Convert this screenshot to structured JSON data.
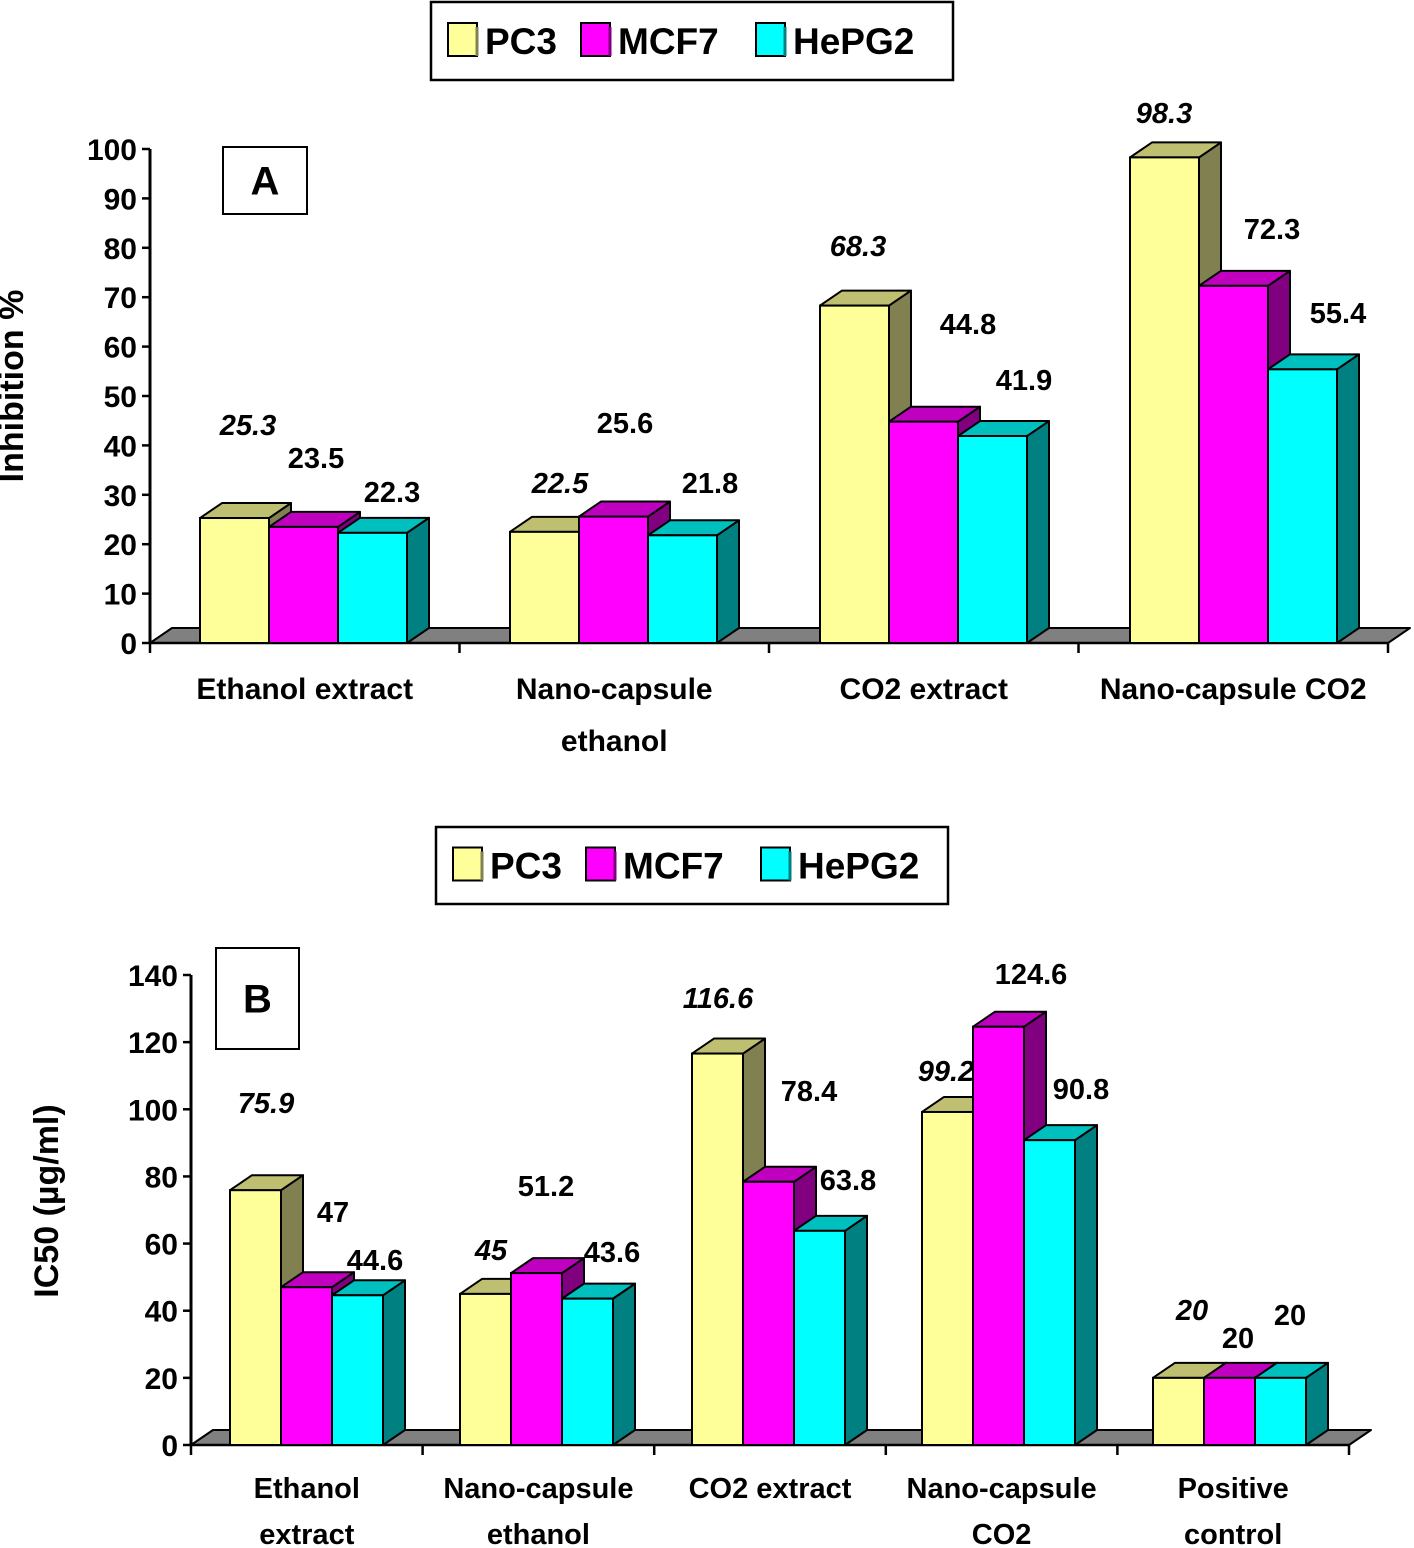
{
  "colors": {
    "pc3": "#FFFF99",
    "pc3_side": "#808050",
    "pc3_top": "#BFBF72",
    "mcf7": "#FF00FF",
    "mcf7_side": "#800080",
    "mcf7_top": "#BF00BF",
    "hepg2": "#00FFFF",
    "hepg2_side": "#008080",
    "hepg2_top": "#00BFBF",
    "floor": "#808080"
  },
  "chart_data": [
    {
      "type": "bar",
      "panel": "A",
      "legend_placement": "top-center",
      "ylabel": "Inhibition %",
      "ylim": [
        0,
        100
      ],
      "yticks": [
        "0",
        "10",
        "20",
        "30",
        "40",
        "50",
        "60",
        "70",
        "80",
        "90",
        "100"
      ],
      "categories": [
        [
          "Ethanol extract"
        ],
        [
          "Nano-capsule",
          "ethanol"
        ],
        [
          "CO2 extract"
        ],
        [
          "Nano-capsule CO2"
        ]
      ],
      "series": [
        {
          "name": "PC3",
          "values": [
            25.3,
            22.5,
            68.3,
            98.3
          ],
          "labels": [
            "25.3",
            "22.5",
            "68.3",
            "98.3"
          ]
        },
        {
          "name": "MCF7",
          "values": [
            23.5,
            25.6,
            44.8,
            72.3
          ],
          "labels": [
            "23.5",
            "25.6",
            "44.8",
            "72.3"
          ]
        },
        {
          "name": "HePG2",
          "values": [
            22.3,
            21.8,
            41.9,
            55.4
          ],
          "labels": [
            "22.3",
            "21.8",
            "41.9",
            "55.4"
          ]
        }
      ]
    },
    {
      "type": "bar",
      "panel": "B",
      "legend_placement": "top-center",
      "ylabel": "IC50 (µg/ml)",
      "ylim": [
        0,
        140
      ],
      "yticks": [
        "0",
        "20",
        "40",
        "60",
        "80",
        "100",
        "120",
        "140"
      ],
      "categories": [
        [
          "Ethanol",
          "extract"
        ],
        [
          "Nano-capsule",
          "ethanol"
        ],
        [
          "CO2 extract"
        ],
        [
          "Nano-capsule",
          "CO2"
        ],
        [
          "Positive",
          "control"
        ]
      ],
      "series": [
        {
          "name": "PC3",
          "values": [
            75.9,
            45,
            116.6,
            99.2,
            20
          ],
          "labels": [
            "75.9",
            "45",
            "116.6",
            "99.2",
            "20"
          ]
        },
        {
          "name": "MCF7",
          "values": [
            47,
            51.2,
            78.4,
            124.6,
            20
          ],
          "labels": [
            "47",
            "51.2",
            "78.4",
            "124.6",
            "20"
          ]
        },
        {
          "name": "HePG2",
          "values": [
            44.6,
            43.6,
            63.8,
            90.8,
            20
          ],
          "labels": [
            "44.6",
            "43.6",
            "63.8",
            "90.8",
            "20"
          ]
        }
      ]
    }
  ]
}
